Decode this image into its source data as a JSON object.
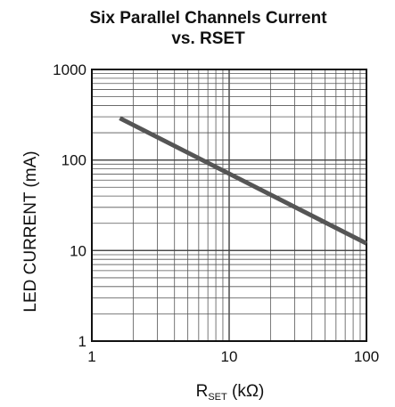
{
  "chart_data": {
    "type": "line",
    "title": "Six Parallel Channels Current",
    "subtitle": "vs. RSET",
    "xlabel": {
      "main": "R",
      "sub": "SET",
      "rest": " (kΩ)"
    },
    "ylabel": "LED CURRENT (mA)",
    "xscale": "log",
    "yscale": "log",
    "xlim": [
      1,
      100
    ],
    "ylim": [
      1,
      1000
    ],
    "x_ticks": [
      1,
      10,
      100
    ],
    "x_tick_labels": [
      "1",
      "10",
      "100"
    ],
    "y_ticks": [
      1,
      10,
      100,
      1000
    ],
    "y_tick_labels": [
      "1",
      "10",
      "100",
      "1000"
    ],
    "grid": true,
    "line_color": "#555555",
    "series": [
      {
        "x": [
          1.6,
          100
        ],
        "y": [
          290,
          12
        ]
      }
    ]
  }
}
